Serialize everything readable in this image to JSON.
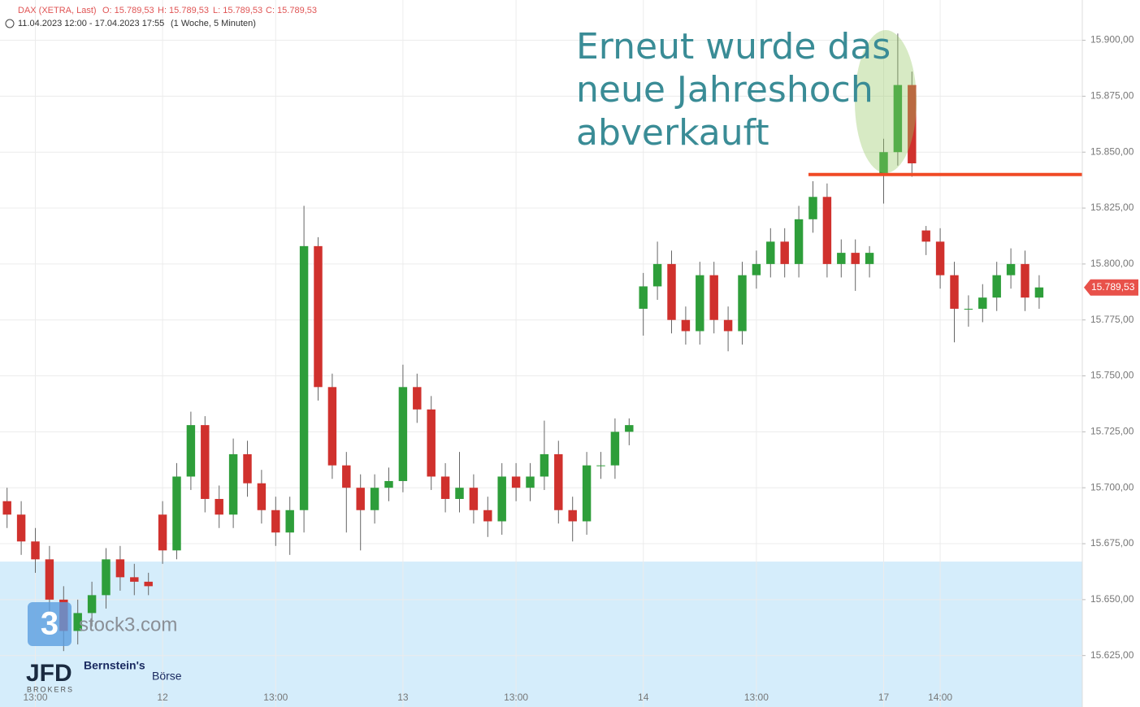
{
  "header": {
    "symbol": "DAX (XETRA, Last)",
    "open": "O: 15.789,53",
    "high": "H: 15.789,53",
    "low": "L: 15.789,53",
    "close": "C: 15.789,53",
    "range": "11.04.2023 12:00 - 17.04.2023 17:55",
    "interval": "(1 Woche, 5 Minuten)"
  },
  "watermarks": {
    "site_icon": "3",
    "site": "stock3.com",
    "broker": "JFD",
    "broker_sub": "BROKERS",
    "partner": "Bernstein's",
    "partner_sub": "Börse"
  },
  "chart_data": {
    "type": "candlestick",
    "annotation": [
      "Erneut wurde das",
      "neue Jahreshoch",
      "abverkauft"
    ],
    "categories": [
      null,
      null,
      "13:00",
      null,
      null,
      null,
      null,
      null,
      null,
      null,
      null,
      "12",
      null,
      null,
      null,
      null,
      null,
      null,
      null,
      "13:00",
      null,
      null,
      null,
      null,
      null,
      null,
      null,
      null,
      "13",
      null,
      null,
      null,
      null,
      null,
      null,
      null,
      "13:00",
      null,
      null,
      null,
      null,
      null,
      null,
      null,
      null,
      "14",
      null,
      null,
      null,
      null,
      null,
      null,
      null,
      "13:00",
      null,
      null,
      null,
      null,
      null,
      null,
      null,
      null,
      "17",
      null,
      null,
      null,
      "14:00",
      null,
      null,
      null,
      null,
      null,
      null,
      null
    ],
    "series": [
      {
        "name": "DAX (XETRA, Last)",
        "up_color": "#2e9e3a",
        "down_color": "#d0312d",
        "open": [
          15694,
          15688,
          15676,
          15668,
          15650,
          15636,
          15644,
          15652,
          15668,
          15660,
          15658,
          15688,
          15672,
          15705,
          15728,
          15695,
          15688,
          15715,
          15702,
          15690,
          15680,
          15690,
          15808,
          15745,
          15710,
          15700,
          15690,
          15700,
          15703,
          15745,
          15735,
          15705,
          15695,
          15700,
          15690,
          15685,
          15705,
          15700,
          15705,
          15715,
          15690,
          15685,
          15710,
          15710,
          15725,
          15780,
          15790,
          15800,
          15775,
          15770,
          15795,
          15775,
          15770,
          15795,
          15800,
          15810,
          15800,
          15820,
          15830,
          15800,
          15805,
          15800,
          15840,
          15850,
          15880,
          15815,
          15810,
          15795,
          15780,
          15780,
          15785,
          15795,
          15800,
          15785
        ],
        "high": [
          15700,
          15694,
          15682,
          15674,
          15656,
          15650,
          15658,
          15673,
          15674,
          15666,
          15662,
          15694,
          15711,
          15734,
          15732,
          15701,
          15722,
          15721,
          15708,
          15696,
          15696,
          15826,
          15812,
          15751,
          15716,
          15706,
          15706,
          15709,
          15755,
          15751,
          15741,
          15711,
          15716,
          15706,
          15696,
          15711,
          15711,
          15711,
          15730,
          15721,
          15696,
          15716,
          15716,
          15731,
          15731,
          15796,
          15810,
          15806,
          15781,
          15801,
          15801,
          15781,
          15801,
          15806,
          15816,
          15816,
          15826,
          15837,
          15836,
          15811,
          15811,
          15808,
          15856,
          15903,
          15886,
          15817,
          15816,
          15801,
          15786,
          15791,
          15801,
          15807,
          15806,
          15795
        ],
        "low": [
          15682,
          15670,
          15662,
          15644,
          15627,
          15630,
          15638,
          15646,
          15654,
          15652,
          15652,
          15666,
          15668,
          15699,
          15689,
          15682,
          15682,
          15696,
          15684,
          15674,
          15670,
          15680,
          15739,
          15704,
          15680,
          15672,
          15684,
          15694,
          15698,
          15729,
          15699,
          15689,
          15689,
          15684,
          15678,
          15679,
          15694,
          15694,
          15699,
          15684,
          15676,
          15679,
          15704,
          15704,
          15719,
          15768,
          15784,
          15769,
          15764,
          15764,
          15769,
          15761,
          15764,
          15789,
          15794,
          15794,
          15794,
          15814,
          15794,
          15794,
          15788,
          15794,
          15827,
          15844,
          15839,
          15804,
          15789,
          15765,
          15772,
          15774,
          15779,
          15789,
          15779,
          15780
        ],
        "close": [
          15688,
          15676,
          15668,
          15650,
          15636,
          15644,
          15652,
          15668,
          15660,
          15658,
          15656,
          15672,
          15705,
          15728,
          15695,
          15688,
          15715,
          15702,
          15690,
          15680,
          15690,
          15808,
          15745,
          15710,
          15700,
          15690,
          15700,
          15703,
          15745,
          15735,
          15705,
          15695,
          15700,
          15690,
          15685,
          15705,
          15700,
          15705,
          15715,
          15690,
          15685,
          15710,
          15710,
          15725,
          15728,
          15790,
          15800,
          15775,
          15770,
          15795,
          15775,
          15770,
          15795,
          15800,
          15810,
          15800,
          15820,
          15830,
          15800,
          15805,
          15800,
          15805,
          15850,
          15880,
          15845,
          15810,
          15795,
          15780,
          15780,
          15785,
          15795,
          15800,
          15785,
          15789.53
        ]
      }
    ],
    "ylim": [
      15610,
      15918
    ],
    "yticks": [
      {
        "value": 15625,
        "label": "15.625,00"
      },
      {
        "value": 15650,
        "label": "15.650,00"
      },
      {
        "value": 15675,
        "label": "15.675,00"
      },
      {
        "value": 15700,
        "label": "15.700,00"
      },
      {
        "value": 15725,
        "label": "15.725,00"
      },
      {
        "value": 15750,
        "label": "15.750,00"
      },
      {
        "value": 15775,
        "label": "15.775,00"
      },
      {
        "value": 15800,
        "label": "15.800,00"
      },
      {
        "value": 15825,
        "label": "15.825,00"
      },
      {
        "value": 15850,
        "label": "15.850,00"
      },
      {
        "value": 15875,
        "label": "15.875,00"
      },
      {
        "value": 15900,
        "label": "15.900,00"
      }
    ],
    "last_price": {
      "value": 15789.53,
      "label": "15.789,53",
      "color": "#e8514a"
    },
    "resistance": {
      "value": 15840,
      "color": "#f04a25"
    },
    "zone_top": {
      "value": 15667,
      "color": "#d5edfb"
    },
    "grid": true
  }
}
